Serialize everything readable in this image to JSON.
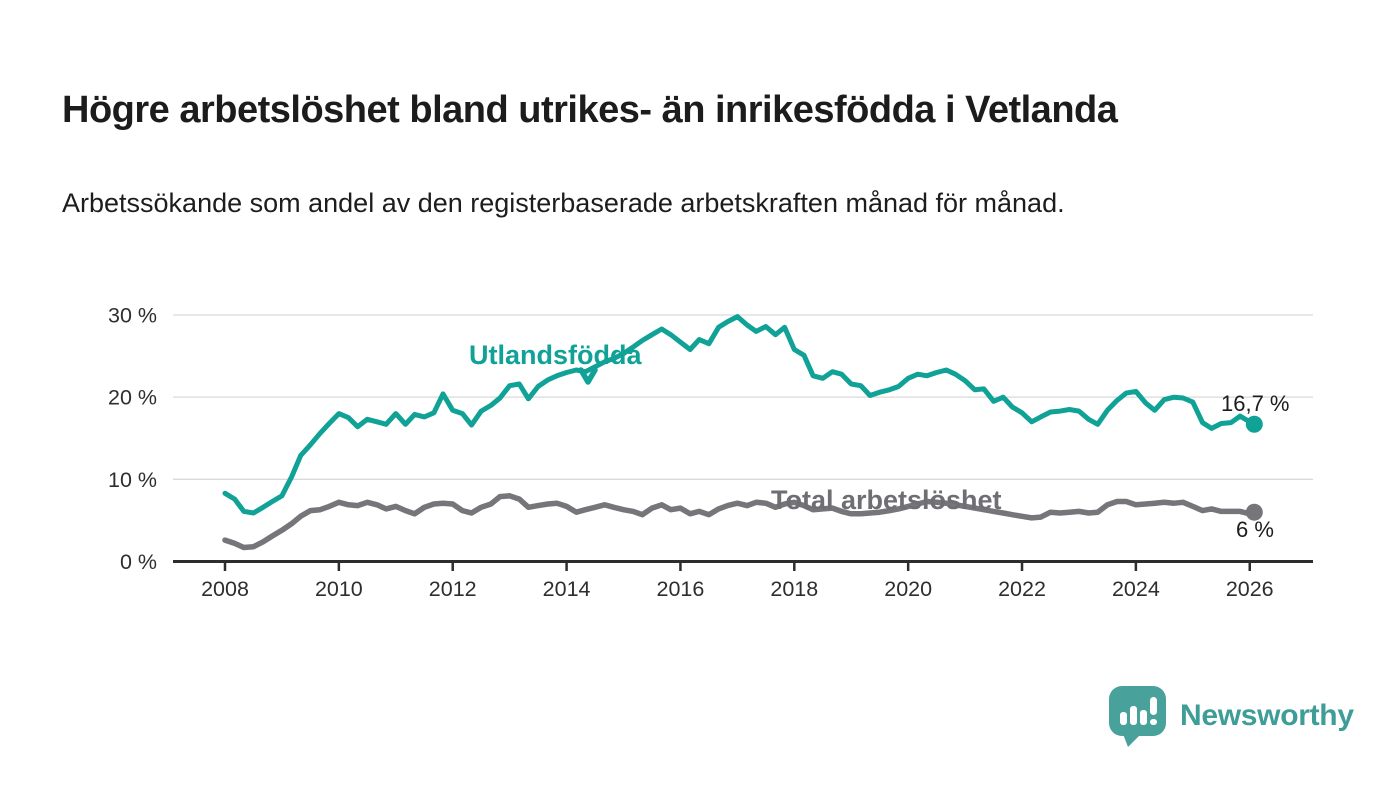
{
  "header": {
    "title": "Högre arbetslöshet bland utrikes- än inrikesfödda i Vetlanda",
    "subtitle": "Arbetssökande som andel av den registerbaserade arbetskraften månad för månad."
  },
  "footer": {
    "brand": "Newsworthy"
  },
  "colors": {
    "teal": "#10a296",
    "gray": "#75757a",
    "axis": "#2d2d2d",
    "gridline": "#dadada",
    "text": "#1c1c1c",
    "logo_teal": "#48a19b"
  },
  "chart_data": {
    "type": "line",
    "title": "Högre arbetslöshet bland utrikes- än inrikesfödda i Vetlanda",
    "subtitle": "Arbetssökande som andel av den registerbaserade arbetskraften månad för månad.",
    "x_axis": {
      "ticks": [
        2008,
        2010,
        2012,
        2014,
        2016,
        2018,
        2020,
        2022,
        2024,
        2026
      ],
      "range": [
        2007.1,
        2027.1
      ],
      "grid": false
    },
    "y_axis": {
      "ticks": [
        0,
        10,
        20,
        30
      ],
      "tick_suffix": " %",
      "range": [
        0,
        33
      ],
      "grid": true
    },
    "legend_position": "inline-labels",
    "series": [
      {
        "name": "Utlandsfödda",
        "color": "#10a296",
        "end_label": "16,7 %",
        "end_value": 16.7,
        "points": [
          [
            2008.0,
            8.3
          ],
          [
            2008.17,
            7.6
          ],
          [
            2008.33,
            6.1
          ],
          [
            2008.5,
            5.9
          ],
          [
            2008.67,
            6.6
          ],
          [
            2008.83,
            7.3
          ],
          [
            2009.0,
            8.0
          ],
          [
            2009.17,
            10.3
          ],
          [
            2009.33,
            12.9
          ],
          [
            2009.5,
            14.2
          ],
          [
            2009.67,
            15.6
          ],
          [
            2009.83,
            16.8
          ],
          [
            2010.0,
            18.0
          ],
          [
            2010.17,
            17.5
          ],
          [
            2010.33,
            16.4
          ],
          [
            2010.5,
            17.3
          ],
          [
            2010.67,
            17.0
          ],
          [
            2010.83,
            16.7
          ],
          [
            2011.0,
            18.0
          ],
          [
            2011.17,
            16.7
          ],
          [
            2011.33,
            17.9
          ],
          [
            2011.5,
            17.6
          ],
          [
            2011.67,
            18.1
          ],
          [
            2011.83,
            20.4
          ],
          [
            2012.0,
            18.4
          ],
          [
            2012.17,
            18.0
          ],
          [
            2012.33,
            16.6
          ],
          [
            2012.5,
            18.3
          ],
          [
            2012.67,
            19.0
          ],
          [
            2012.83,
            19.9
          ],
          [
            2013.0,
            21.4
          ],
          [
            2013.17,
            21.6
          ],
          [
            2013.33,
            19.8
          ],
          [
            2013.5,
            21.3
          ],
          [
            2013.67,
            22.1
          ],
          [
            2013.83,
            22.6
          ],
          [
            2014.0,
            23.0
          ],
          [
            2014.17,
            23.3
          ],
          [
            2014.33,
            23.1
          ],
          [
            2014.5,
            23.7
          ],
          [
            2014.67,
            24.3
          ],
          [
            2014.83,
            24.7
          ],
          [
            2015.0,
            25.3
          ],
          [
            2015.17,
            26.1
          ],
          [
            2015.33,
            26.9
          ],
          [
            2015.5,
            27.6
          ],
          [
            2015.67,
            28.3
          ],
          [
            2015.83,
            27.6
          ],
          [
            2016.0,
            26.7
          ],
          [
            2016.17,
            25.8
          ],
          [
            2016.33,
            27.0
          ],
          [
            2016.5,
            26.5
          ],
          [
            2016.67,
            28.5
          ],
          [
            2016.83,
            29.2
          ],
          [
            2017.0,
            29.8
          ],
          [
            2017.17,
            28.8
          ],
          [
            2017.33,
            28.0
          ],
          [
            2017.5,
            28.6
          ],
          [
            2017.67,
            27.6
          ],
          [
            2017.83,
            28.5
          ],
          [
            2018.0,
            25.8
          ],
          [
            2018.17,
            25.1
          ],
          [
            2018.33,
            22.6
          ],
          [
            2018.5,
            22.3
          ],
          [
            2018.67,
            23.1
          ],
          [
            2018.83,
            22.8
          ],
          [
            2019.0,
            21.6
          ],
          [
            2019.17,
            21.4
          ],
          [
            2019.33,
            20.2
          ],
          [
            2019.5,
            20.6
          ],
          [
            2019.67,
            20.9
          ],
          [
            2019.83,
            21.3
          ],
          [
            2020.0,
            22.3
          ],
          [
            2020.17,
            22.8
          ],
          [
            2020.33,
            22.6
          ],
          [
            2020.5,
            23.0
          ],
          [
            2020.67,
            23.3
          ],
          [
            2020.83,
            22.8
          ],
          [
            2021.0,
            22.0
          ],
          [
            2021.17,
            20.9
          ],
          [
            2021.33,
            21.0
          ],
          [
            2021.5,
            19.5
          ],
          [
            2021.67,
            20.0
          ],
          [
            2021.83,
            18.8
          ],
          [
            2022.0,
            18.1
          ],
          [
            2022.17,
            17.0
          ],
          [
            2022.33,
            17.6
          ],
          [
            2022.5,
            18.2
          ],
          [
            2022.67,
            18.3
          ],
          [
            2022.83,
            18.5
          ],
          [
            2023.0,
            18.3
          ],
          [
            2023.17,
            17.3
          ],
          [
            2023.33,
            16.7
          ],
          [
            2023.5,
            18.4
          ],
          [
            2023.67,
            19.6
          ],
          [
            2023.83,
            20.5
          ],
          [
            2024.0,
            20.7
          ],
          [
            2024.17,
            19.3
          ],
          [
            2024.33,
            18.4
          ],
          [
            2024.5,
            19.7
          ],
          [
            2024.67,
            20.0
          ],
          [
            2024.83,
            19.9
          ],
          [
            2025.0,
            19.4
          ],
          [
            2025.17,
            16.9
          ],
          [
            2025.33,
            16.2
          ],
          [
            2025.5,
            16.8
          ],
          [
            2025.67,
            16.9
          ],
          [
            2025.83,
            17.7
          ],
          [
            2026.0,
            17.0
          ],
          [
            2026.08,
            16.7
          ]
        ]
      },
      {
        "name": "Total arbetslöshet",
        "color": "#75757a",
        "end_label": "6 %",
        "end_value": 6,
        "points": [
          [
            2008.0,
            2.6
          ],
          [
            2008.17,
            2.2
          ],
          [
            2008.33,
            1.7
          ],
          [
            2008.5,
            1.8
          ],
          [
            2008.67,
            2.4
          ],
          [
            2008.83,
            3.1
          ],
          [
            2009.0,
            3.8
          ],
          [
            2009.17,
            4.6
          ],
          [
            2009.33,
            5.5
          ],
          [
            2009.5,
            6.2
          ],
          [
            2009.67,
            6.3
          ],
          [
            2009.83,
            6.7
          ],
          [
            2010.0,
            7.2
          ],
          [
            2010.17,
            6.9
          ],
          [
            2010.33,
            6.8
          ],
          [
            2010.5,
            7.2
          ],
          [
            2010.67,
            6.9
          ],
          [
            2010.83,
            6.4
          ],
          [
            2011.0,
            6.7
          ],
          [
            2011.17,
            6.2
          ],
          [
            2011.33,
            5.8
          ],
          [
            2011.5,
            6.6
          ],
          [
            2011.67,
            7.0
          ],
          [
            2011.83,
            7.1
          ],
          [
            2012.0,
            7.0
          ],
          [
            2012.17,
            6.2
          ],
          [
            2012.33,
            5.9
          ],
          [
            2012.5,
            6.6
          ],
          [
            2012.67,
            7.0
          ],
          [
            2012.83,
            7.9
          ],
          [
            2013.0,
            8.0
          ],
          [
            2013.17,
            7.6
          ],
          [
            2013.33,
            6.6
          ],
          [
            2013.5,
            6.8
          ],
          [
            2013.67,
            7.0
          ],
          [
            2013.83,
            7.1
          ],
          [
            2014.0,
            6.7
          ],
          [
            2014.17,
            6.0
          ],
          [
            2014.33,
            6.3
          ],
          [
            2014.5,
            6.6
          ],
          [
            2014.67,
            6.9
          ],
          [
            2014.83,
            6.6
          ],
          [
            2015.0,
            6.3
          ],
          [
            2015.17,
            6.1
          ],
          [
            2015.33,
            5.7
          ],
          [
            2015.5,
            6.5
          ],
          [
            2015.67,
            6.9
          ],
          [
            2015.83,
            6.3
          ],
          [
            2016.0,
            6.5
          ],
          [
            2016.17,
            5.8
          ],
          [
            2016.33,
            6.1
          ],
          [
            2016.5,
            5.7
          ],
          [
            2016.67,
            6.4
          ],
          [
            2016.83,
            6.8
          ],
          [
            2017.0,
            7.1
          ],
          [
            2017.17,
            6.8
          ],
          [
            2017.33,
            7.2
          ],
          [
            2017.5,
            7.1
          ],
          [
            2017.67,
            6.6
          ],
          [
            2017.83,
            7.0
          ],
          [
            2018.0,
            7.2
          ],
          [
            2018.17,
            6.8
          ],
          [
            2018.33,
            6.3
          ],
          [
            2018.5,
            6.4
          ],
          [
            2018.67,
            6.5
          ],
          [
            2018.83,
            6.1
          ],
          [
            2019.0,
            5.8
          ],
          [
            2019.17,
            5.8
          ],
          [
            2019.33,
            5.9
          ],
          [
            2019.5,
            6.0
          ],
          [
            2019.67,
            6.2
          ],
          [
            2019.83,
            6.4
          ],
          [
            2020.0,
            6.7
          ],
          [
            2020.17,
            7.0
          ],
          [
            2020.33,
            7.3
          ],
          [
            2020.5,
            7.2
          ],
          [
            2020.67,
            7.1
          ],
          [
            2020.83,
            6.9
          ],
          [
            2021.0,
            6.7
          ],
          [
            2021.17,
            6.5
          ],
          [
            2021.33,
            6.3
          ],
          [
            2021.5,
            6.1
          ],
          [
            2021.67,
            5.9
          ],
          [
            2021.83,
            5.7
          ],
          [
            2022.0,
            5.5
          ],
          [
            2022.17,
            5.3
          ],
          [
            2022.33,
            5.4
          ],
          [
            2022.5,
            6.0
          ],
          [
            2022.67,
            5.9
          ],
          [
            2022.83,
            6.0
          ],
          [
            2023.0,
            6.1
          ],
          [
            2023.17,
            5.9
          ],
          [
            2023.33,
            6.0
          ],
          [
            2023.5,
            6.9
          ],
          [
            2023.67,
            7.3
          ],
          [
            2023.83,
            7.3
          ],
          [
            2024.0,
            6.9
          ],
          [
            2024.17,
            7.0
          ],
          [
            2024.33,
            7.1
          ],
          [
            2024.5,
            7.2
          ],
          [
            2024.67,
            7.1
          ],
          [
            2024.83,
            7.2
          ],
          [
            2025.0,
            6.7
          ],
          [
            2025.17,
            6.2
          ],
          [
            2025.33,
            6.4
          ],
          [
            2025.5,
            6.1
          ],
          [
            2025.67,
            6.1
          ],
          [
            2025.83,
            6.1
          ],
          [
            2026.0,
            5.8
          ],
          [
            2026.08,
            6.0
          ]
        ]
      }
    ]
  }
}
